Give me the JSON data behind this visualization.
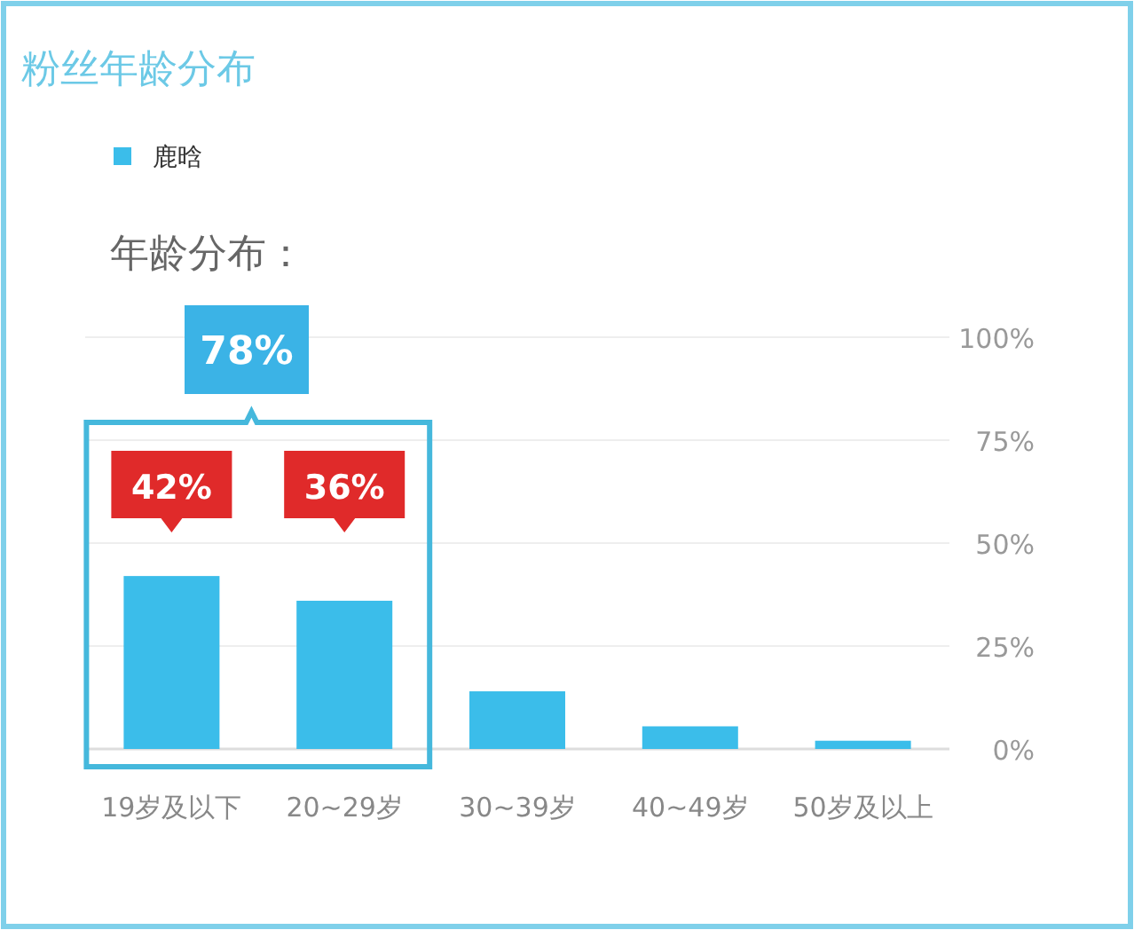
{
  "chart_data": {
    "type": "bar",
    "title": "粉丝年龄分布",
    "subtitle": "年龄分布：",
    "categories": [
      "19岁及以下",
      "20~29岁",
      "30~39岁",
      "40~49岁",
      "50岁及以上"
    ],
    "series": [
      {
        "name": "鹿晗",
        "color": "#3bbdea",
        "values": [
          42,
          36,
          14,
          5.5,
          2
        ],
        "value_labels": [
          "42%",
          "36%",
          null,
          null,
          null
        ]
      }
    ],
    "ylim": [
      0,
      100
    ],
    "yticks": [
      {
        "value": 0,
        "label": "0%"
      },
      {
        "value": 25,
        "label": "25%"
      },
      {
        "value": 50,
        "label": "50%"
      },
      {
        "value": 75,
        "label": "75%"
      },
      {
        "value": 100,
        "label": "100%"
      }
    ],
    "grid": "y",
    "legend": "top left",
    "annotations": [
      "78%"
    ]
  }
}
